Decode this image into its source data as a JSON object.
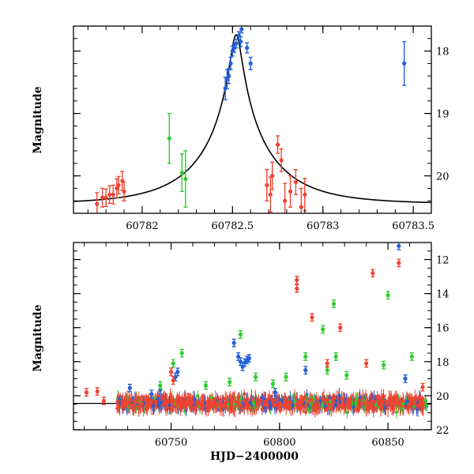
{
  "chart_data": [
    {
      "type": "scatter",
      "panel": "top",
      "xlabel": "",
      "ylabel": "Magnitude",
      "xlim": [
        60781.62,
        60783.6
      ],
      "ylim": [
        20.6,
        17.6
      ],
      "y_inverted": true,
      "x_ticks": [
        60782,
        60782.5,
        60783,
        60783.5
      ],
      "x_tick_labels": [
        "60782",
        "60782.5",
        "60783",
        "60783.5"
      ],
      "y_ticks": [
        18,
        19,
        20
      ],
      "y_tick_labels": [
        "18",
        "19",
        "20"
      ],
      "model_curve": {
        "type": "microlensing",
        "peak_x": 60782.52,
        "peak_mag": 17.85,
        "baseline_mag": 20.45,
        "u0": 0.075,
        "tE": 0.4,
        "blend_fraction": 0.9
      },
      "series": [
        {
          "color": "#2060d8",
          "points": [
            {
              "x": 60782.46,
              "y": 18.6,
              "err": 0.18
            },
            {
              "x": 60782.47,
              "y": 18.45,
              "err": 0.15
            },
            {
              "x": 60782.48,
              "y": 18.4,
              "err": 0.12
            },
            {
              "x": 60782.49,
              "y": 18.2,
              "err": 0.1
            },
            {
              "x": 60782.5,
              "y": 18.0,
              "err": 0.08
            },
            {
              "x": 60782.51,
              "y": 17.95,
              "err": 0.07
            },
            {
              "x": 60782.52,
              "y": 17.88,
              "err": 0.07
            },
            {
              "x": 60782.535,
              "y": 17.75,
              "err": 0.06
            },
            {
              "x": 60782.55,
              "y": 17.65,
              "err": 0.06
            },
            {
              "x": 60782.545,
              "y": 17.85,
              "err": 0.08
            },
            {
              "x": 60782.58,
              "y": 17.95,
              "err": 0.08
            },
            {
              "x": 60782.6,
              "y": 18.2,
              "err": 0.1
            },
            {
              "x": 60783.45,
              "y": 18.2,
              "err": 0.35
            }
          ]
        },
        {
          "color": "#30cc30",
          "points": [
            {
              "x": 60782.15,
              "y": 19.4,
              "err": 0.4
            },
            {
              "x": 60782.22,
              "y": 19.95,
              "err": 0.3
            },
            {
              "x": 60782.24,
              "y": 20.05,
              "err": 0.45
            }
          ]
        },
        {
          "color": "#ee4433",
          "points": [
            {
              "x": 60781.75,
              "y": 20.45,
              "err": 0.18
            },
            {
              "x": 60781.78,
              "y": 20.35,
              "err": 0.15
            },
            {
              "x": 60781.8,
              "y": 20.35,
              "err": 0.14
            },
            {
              "x": 60781.82,
              "y": 20.3,
              "err": 0.14
            },
            {
              "x": 60781.84,
              "y": 20.3,
              "err": 0.15
            },
            {
              "x": 60781.86,
              "y": 20.2,
              "err": 0.15
            },
            {
              "x": 60781.87,
              "y": 20.15,
              "err": 0.14
            },
            {
              "x": 60781.89,
              "y": 20.08,
              "err": 0.15
            },
            {
              "x": 60781.9,
              "y": 20.25,
              "err": 0.15
            },
            {
              "x": 60782.69,
              "y": 20.15,
              "err": 0.25
            },
            {
              "x": 60782.71,
              "y": 20.3,
              "err": 0.28
            },
            {
              "x": 60782.72,
              "y": 20.0,
              "err": 0.22
            },
            {
              "x": 60782.75,
              "y": 19.5,
              "err": 0.14
            },
            {
              "x": 60782.77,
              "y": 19.75,
              "err": 0.18
            },
            {
              "x": 60782.79,
              "y": 20.4,
              "err": 0.28
            },
            {
              "x": 60782.82,
              "y": 20.25,
              "err": 0.25
            },
            {
              "x": 60782.85,
              "y": 20.1,
              "err": 0.2
            },
            {
              "x": 60782.88,
              "y": 20.5,
              "err": 0.3
            },
            {
              "x": 60782.9,
              "y": 20.3,
              "err": 0.26
            }
          ]
        }
      ]
    },
    {
      "type": "scatter",
      "panel": "bottom",
      "xlabel": "HJD−2400000",
      "ylabel": "Magnitude",
      "xlim": [
        60705,
        60870
      ],
      "ylim": [
        22,
        11
      ],
      "y_inverted": true,
      "x_ticks": [
        60750,
        60800,
        60850
      ],
      "x_tick_labels": [
        "60750",
        "60800",
        "60850"
      ],
      "y_ticks": [
        12,
        14,
        16,
        18,
        20,
        22
      ],
      "y_tick_labels": [
        "12",
        "14",
        "16",
        "18",
        "20",
        "22"
      ],
      "baseline_mag": 20.45,
      "dense_baseline": {
        "x_range": [
          60725,
          60868
        ],
        "y_center": 20.45,
        "y_scatter": 0.35,
        "colors": [
          "#2060d8",
          "#30cc30",
          "#ee4433"
        ]
      },
      "series": [
        {
          "color": "#2060d8",
          "points": [
            {
              "x": 60731,
              "y": 19.55
            },
            {
              "x": 60741,
              "y": 19.9
            },
            {
              "x": 60745,
              "y": 19.65
            },
            {
              "x": 60752,
              "y": 18.9
            },
            {
              "x": 60753,
              "y": 18.6
            },
            {
              "x": 60779,
              "y": 16.9
            },
            {
              "x": 60781,
              "y": 17.7
            },
            {
              "x": 60782,
              "y": 18.0
            },
            {
              "x": 60783,
              "y": 18.3
            },
            {
              "x": 60784,
              "y": 18.05
            },
            {
              "x": 60785,
              "y": 17.9
            },
            {
              "x": 60786,
              "y": 17.8
            },
            {
              "x": 60798,
              "y": 19.8
            },
            {
              "x": 60812,
              "y": 18.5
            },
            {
              "x": 60855,
              "y": 11.2
            },
            {
              "x": 60858,
              "y": 19.0
            }
          ]
        },
        {
          "color": "#30cc30",
          "points": [
            {
              "x": 60745,
              "y": 19.4
            },
            {
              "x": 60751,
              "y": 18.1
            },
            {
              "x": 60755,
              "y": 17.5
            },
            {
              "x": 60766,
              "y": 19.4
            },
            {
              "x": 60777,
              "y": 19.2
            },
            {
              "x": 60782,
              "y": 16.4
            },
            {
              "x": 60789,
              "y": 18.9
            },
            {
              "x": 60797,
              "y": 19.3
            },
            {
              "x": 60803,
              "y": 18.9
            },
            {
              "x": 60812,
              "y": 17.7
            },
            {
              "x": 60820,
              "y": 16.1
            },
            {
              "x": 60822,
              "y": 18.5
            },
            {
              "x": 60825,
              "y": 14.6
            },
            {
              "x": 60826,
              "y": 17.7
            },
            {
              "x": 60831,
              "y": 18.8
            },
            {
              "x": 60848,
              "y": 18.2
            },
            {
              "x": 60850,
              "y": 14.1
            },
            {
              "x": 60861,
              "y": 17.7
            }
          ]
        },
        {
          "color": "#ee4433",
          "points": [
            {
              "x": 60711,
              "y": 19.8
            },
            {
              "x": 60716,
              "y": 19.75
            },
            {
              "x": 60719,
              "y": 20.3
            },
            {
              "x": 60750,
              "y": 18.6
            },
            {
              "x": 60751,
              "y": 19.1
            },
            {
              "x": 60758,
              "y": 20.1
            },
            {
              "x": 60808,
              "y": 13.2
            },
            {
              "x": 60808,
              "y": 13.7
            },
            {
              "x": 60815,
              "y": 15.4
            },
            {
              "x": 60822,
              "y": 18.1
            },
            {
              "x": 60828,
              "y": 16.0
            },
            {
              "x": 60840,
              "y": 18.1
            },
            {
              "x": 60843,
              "y": 12.8
            },
            {
              "x": 60855,
              "y": 12.2
            },
            {
              "x": 60866,
              "y": 19.5
            }
          ]
        }
      ]
    }
  ]
}
